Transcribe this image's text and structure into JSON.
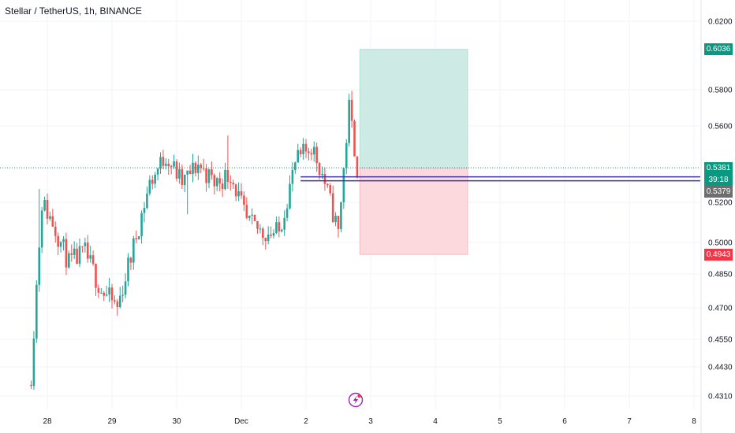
{
  "header": {
    "title": "Stellar / TetherUS, 1h, BINANCE"
  },
  "price_axis": {
    "ticks": [
      "0.6200",
      "0.5800",
      "0.5600",
      "0.5200",
      "0.5000",
      "0.4850",
      "0.4700",
      "0.4550",
      "0.4430",
      "0.4310"
    ]
  },
  "time_axis": {
    "ticks": [
      "28",
      "29",
      "30",
      "Dec",
      "2",
      "3",
      "4",
      "5",
      "6",
      "7",
      "8"
    ]
  },
  "tags": {
    "target": "0.6036",
    "current": "0.5381",
    "countdown": "39:18",
    "entry": "0.5379",
    "stop": "0.4943"
  },
  "colors": {
    "up": "#26a69a",
    "down": "#ef5350",
    "target_zone": "#cdeae4",
    "stop_zone": "#fcd9dc",
    "entry_line": "#3c2fb0",
    "current_tag": "#089981",
    "entry_tag": "#6e6e6e",
    "stop_tag": "#f23645",
    "event_icon": "#9c27b0"
  },
  "chart_data": {
    "type": "candlestick",
    "title": "Stellar / TetherUS, 1h, BINANCE",
    "y_scale": "log",
    "ylim": [
      0.428,
      0.635
    ],
    "x_range": [
      "2023-11-27 17:00",
      "2023-12-08 06:00"
    ],
    "candle_interval": "1h",
    "candles_close_approx": [
      {
        "t": "2023-11-27 18:00",
        "close": 0.44
      },
      {
        "t": "2023-11-27 22:00",
        "close": 0.52
      },
      {
        "t": "2023-11-28 02:00",
        "close": 0.51
      },
      {
        "t": "2023-11-28 08:00",
        "close": 0.49
      },
      {
        "t": "2023-11-28 14:00",
        "close": 0.495
      },
      {
        "t": "2023-11-28 20:00",
        "close": 0.478
      },
      {
        "t": "2023-11-29 02:00",
        "close": 0.47
      },
      {
        "t": "2023-11-29 08:00",
        "close": 0.498
      },
      {
        "t": "2023-11-29 14:00",
        "close": 0.53
      },
      {
        "t": "2023-11-29 20:00",
        "close": 0.545
      },
      {
        "t": "2023-11-30 02:00",
        "close": 0.53
      },
      {
        "t": "2023-11-30 08:00",
        "close": 0.54
      },
      {
        "t": "2023-11-30 14:00",
        "close": 0.53
      },
      {
        "t": "2023-11-30 20:00",
        "close": 0.535
      },
      {
        "t": "2023-12-01 02:00",
        "close": 0.51
      },
      {
        "t": "2023-12-01 08:00",
        "close": 0.505
      },
      {
        "t": "2023-12-01 14:00",
        "close": 0.505
      },
      {
        "t": "2023-12-01 20:00",
        "close": 0.54
      },
      {
        "t": "2023-12-02 02:00",
        "close": 0.55
      },
      {
        "t": "2023-12-02 06:00",
        "close": 0.535
      },
      {
        "t": "2023-12-02 12:00",
        "close": 0.505
      },
      {
        "t": "2023-12-02 16:00",
        "close": 0.57
      },
      {
        "t": "2023-12-02 19:00",
        "close": 0.538
      }
    ],
    "position": {
      "type": "long",
      "start": "2023-12-02 20:00",
      "end": "2023-12-04 12:00",
      "target": 0.6036,
      "entry": 0.5379,
      "stop": 0.4943
    },
    "last_price": 0.5381
  }
}
